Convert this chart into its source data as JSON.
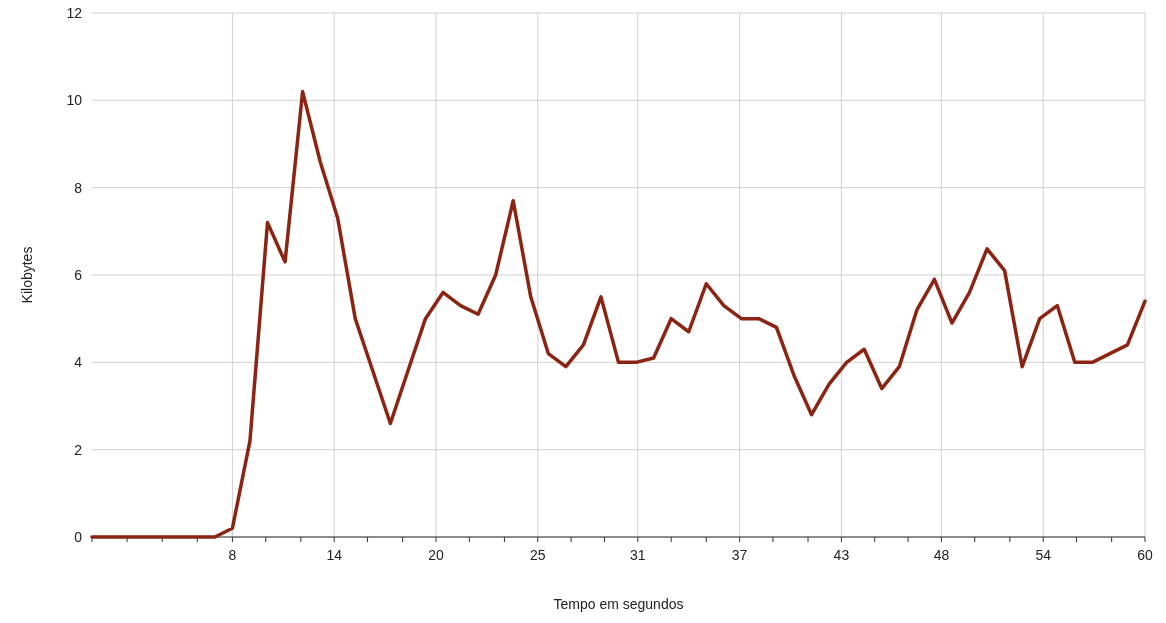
{
  "chart_data": {
    "type": "line",
    "xlabel": "Tempo em segundos",
    "ylabel": "Kilobytes",
    "x": [
      0,
      1,
      2,
      3,
      4,
      5,
      6,
      7,
      8,
      9,
      10,
      11,
      12,
      13,
      14,
      15,
      16,
      17,
      18,
      19,
      20,
      21,
      22,
      23,
      24,
      25,
      26,
      27,
      28,
      29,
      30,
      31,
      32,
      33,
      34,
      35,
      36,
      37,
      38,
      39,
      40,
      41,
      42,
      43,
      44,
      45,
      46,
      47,
      48,
      49,
      50,
      51,
      52,
      53,
      54,
      55,
      56,
      57,
      58,
      59,
      60
    ],
    "series": [
      {
        "color": "#8b2412",
        "values": [
          0,
          0,
          0,
          0,
          0,
          0,
          0,
          0,
          0.2,
          2.2,
          7.2,
          6.3,
          10.2,
          8.6,
          7.3,
          5.0,
          3.8,
          2.6,
          3.8,
          5.0,
          5.6,
          5.3,
          5.1,
          6.0,
          7.7,
          5.5,
          4.2,
          3.9,
          4.4,
          5.5,
          4.0,
          4.0,
          4.1,
          5.0,
          4.7,
          5.8,
          5.3,
          5.0,
          5.0,
          4.8,
          3.7,
          2.8,
          3.5,
          4.0,
          4.3,
          3.4,
          3.9,
          5.2,
          5.9,
          4.9,
          5.6,
          6.6,
          6.1,
          3.9,
          5.0,
          5.3,
          4.0,
          4.0,
          4.2,
          4.4,
          5.4
        ]
      }
    ],
    "xlim": [
      0,
      60
    ],
    "xticks": [
      {
        "value": 0,
        "label": null
      },
      {
        "value": 2,
        "label": null
      },
      {
        "value": 4,
        "label": null
      },
      {
        "value": 6,
        "label": null
      },
      {
        "value": 8,
        "label": "8"
      },
      {
        "value": 9.9,
        "label": null
      },
      {
        "value": 11.9,
        "label": null
      },
      {
        "value": 13.8,
        "label": "14"
      },
      {
        "value": 15.7,
        "label": null
      },
      {
        "value": 17.7,
        "label": null
      },
      {
        "value": 19.6,
        "label": "20"
      },
      {
        "value": 21.5,
        "label": null
      },
      {
        "value": 23.5,
        "label": null
      },
      {
        "value": 25.4,
        "label": "25"
      },
      {
        "value": 27.3,
        "label": null
      },
      {
        "value": 29.2,
        "label": null
      },
      {
        "value": 31.1,
        "label": "31"
      },
      {
        "value": 33,
        "label": null
      },
      {
        "value": 35,
        "label": null
      },
      {
        "value": 36.9,
        "label": "37"
      },
      {
        "value": 38.8,
        "label": null
      },
      {
        "value": 40.8,
        "label": null
      },
      {
        "value": 42.7,
        "label": "43"
      },
      {
        "value": 44.6,
        "label": null
      },
      {
        "value": 46.5,
        "label": null
      },
      {
        "value": 48.4,
        "label": "48"
      },
      {
        "value": 50.3,
        "label": null
      },
      {
        "value": 52.3,
        "label": null
      },
      {
        "value": 54.2,
        "label": "54"
      },
      {
        "value": 56.1,
        "label": null
      },
      {
        "value": 58.1,
        "label": null
      },
      {
        "value": 60,
        "label": "60"
      }
    ],
    "ylim": [
      0,
      12
    ],
    "yticks": [
      0,
      2,
      4,
      6,
      8,
      10,
      12
    ],
    "grid": true,
    "marker": "none",
    "line_style": "solid"
  }
}
